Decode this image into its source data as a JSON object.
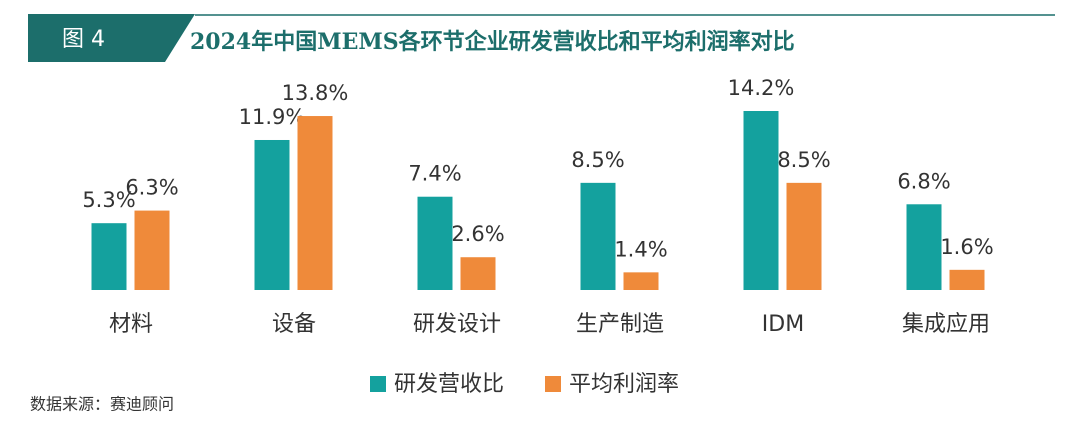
{
  "header": {
    "figure_label": "图 4"
  },
  "chart_data": {
    "type": "bar",
    "title": "2024年中国MEMS各环节企业研发营收比和平均利润率对比",
    "categories": [
      "材料",
      "设备",
      "研发设计",
      "生产制造",
      "IDM",
      "集成应用"
    ],
    "series": [
      {
        "name": "研发营收比",
        "color": "#14a19e",
        "values": [
          5.3,
          11.9,
          7.4,
          8.5,
          14.2,
          6.8
        ],
        "value_labels": [
          "5.3%",
          "11.9%",
          "7.4%",
          "8.5%",
          "14.2%",
          "6.8%"
        ]
      },
      {
        "name": "平均利润率",
        "color": "#ef8a3a",
        "values": [
          6.3,
          13.8,
          2.6,
          1.4,
          8.5,
          1.6
        ],
        "value_labels": [
          "6.3%",
          "13.8%",
          "2.6%",
          "1.4%",
          "8.5%",
          "1.6%"
        ]
      }
    ],
    "source": "数据来源：赛迪顾问"
  }
}
